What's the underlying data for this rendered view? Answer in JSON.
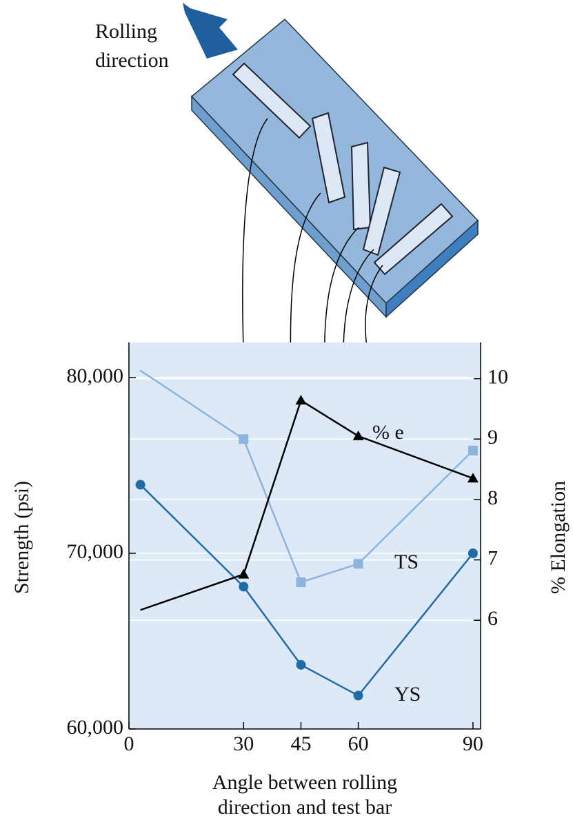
{
  "chart_data": {
    "type": "line",
    "rolling_label": [
      "Rolling",
      "direction"
    ],
    "x_label": [
      "Angle between rolling",
      "direction and test bar"
    ],
    "y_label": "Strength (psi)",
    "y2_label": "% Elongation",
    "xlim": [
      0,
      92
    ],
    "xticks": [
      0,
      30,
      45,
      60,
      90
    ],
    "ylim": [
      60000,
      82000
    ],
    "yticks": [
      {
        "value": 60000,
        "label": "60,000"
      },
      {
        "value": 70000,
        "label": "70,000"
      },
      {
        "value": 80000,
        "label": "80,000"
      }
    ],
    "y2lim": [
      4.2,
      10.6
    ],
    "y2ticks": [
      6,
      7,
      8,
      9,
      10
    ],
    "grid": true,
    "series": [
      {
        "name": "TS",
        "color": "#8db4dc",
        "marker": "square",
        "x": [
          3,
          30,
          45,
          60,
          90
        ],
        "values": [
          80400,
          76500,
          68350,
          69400,
          75850
        ]
      },
      {
        "name": "YS",
        "color": "#1f6ca8",
        "marker": "circle",
        "x": [
          3,
          30,
          45,
          60,
          90
        ],
        "values": [
          73900,
          68100,
          63650,
          61900,
          70000
        ]
      },
      {
        "name": "% e",
        "color": "#000000",
        "marker": "triangle",
        "axis": "y2",
        "x": [
          3,
          30,
          45,
          60,
          90
        ],
        "values": [
          6.17,
          6.76,
          9.64,
          9.05,
          8.35
        ]
      }
    ]
  }
}
